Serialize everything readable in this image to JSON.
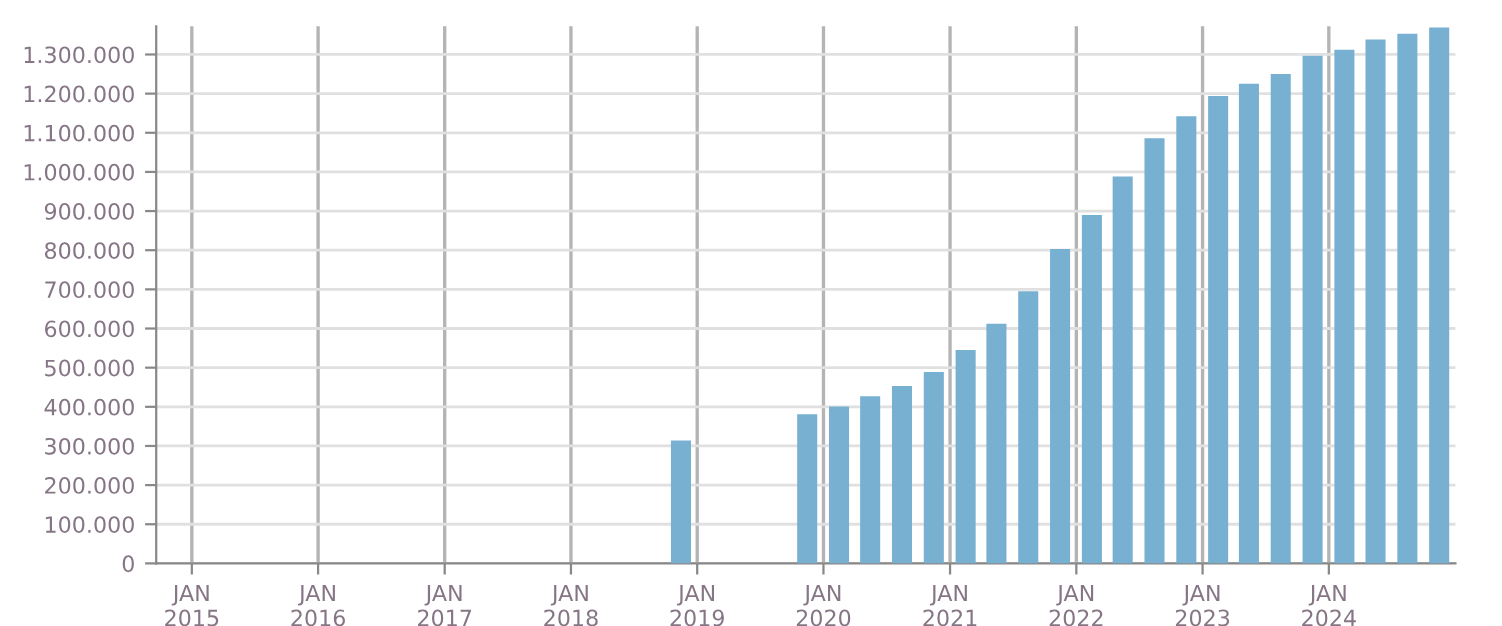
{
  "chart_data": {
    "type": "bar",
    "color": "#78b0d2",
    "grid": true,
    "legend": false,
    "x": [
      "2018-11-15",
      "2019-11-15",
      "2020-02-15",
      "2020-05-15",
      "2020-08-15",
      "2020-11-15",
      "2021-02-15",
      "2021-05-15",
      "2021-08-15",
      "2021-11-15",
      "2022-02-15",
      "2022-05-15",
      "2022-08-15",
      "2022-11-15",
      "2023-02-15",
      "2023-05-15",
      "2023-08-15",
      "2023-11-15",
      "2024-02-15",
      "2024-05-15",
      "2024-08-15",
      "2024-11-15"
    ],
    "values": [
      314000,
      381000,
      401000,
      427000,
      453000,
      489000,
      545000,
      612000,
      695000,
      803000,
      890000,
      988000,
      1086000,
      1142000,
      1194000,
      1225000,
      1250000,
      1297000,
      1312000,
      1338000,
      1353000,
      1369000
    ],
    "xlim": [
      "2014-09-20",
      "2025-01-01"
    ],
    "xticks": [
      {
        "value": "2015-01-01",
        "label": "JAN\n2015"
      },
      {
        "value": "2016-01-01",
        "label": "JAN\n2016"
      },
      {
        "value": "2017-01-01",
        "label": "JAN\n2017"
      },
      {
        "value": "2018-01-01",
        "label": "JAN\n2018"
      },
      {
        "value": "2019-01-01",
        "label": "JAN\n2019"
      },
      {
        "value": "2020-01-01",
        "label": "JAN\n2020"
      },
      {
        "value": "2021-01-01",
        "label": "JAN\n2021"
      },
      {
        "value": "2022-01-01",
        "label": "JAN\n2022"
      },
      {
        "value": "2023-01-01",
        "label": "JAN\n2023"
      },
      {
        "value": "2024-01-01",
        "label": "JAN\n2024"
      }
    ],
    "ylim": [
      0,
      1372000
    ],
    "yticks": [
      {
        "value": 0,
        "label": "0"
      },
      {
        "value": 100000,
        "label": "100.000"
      },
      {
        "value": 200000,
        "label": "200.000"
      },
      {
        "value": 300000,
        "label": "300.000"
      },
      {
        "value": 400000,
        "label": "400.000"
      },
      {
        "value": 500000,
        "label": "500.000"
      },
      {
        "value": 600000,
        "label": "600.000"
      },
      {
        "value": 700000,
        "label": "700.000"
      },
      {
        "value": 800000,
        "label": "800.000"
      },
      {
        "value": 900000,
        "label": "900.000"
      },
      {
        "value": 1000000,
        "label": "1.000.000"
      },
      {
        "value": 1100000,
        "label": "1.100.000"
      },
      {
        "value": 1200000,
        "label": "1.200.000"
      },
      {
        "value": 1300000,
        "label": "1.300.000"
      }
    ]
  }
}
